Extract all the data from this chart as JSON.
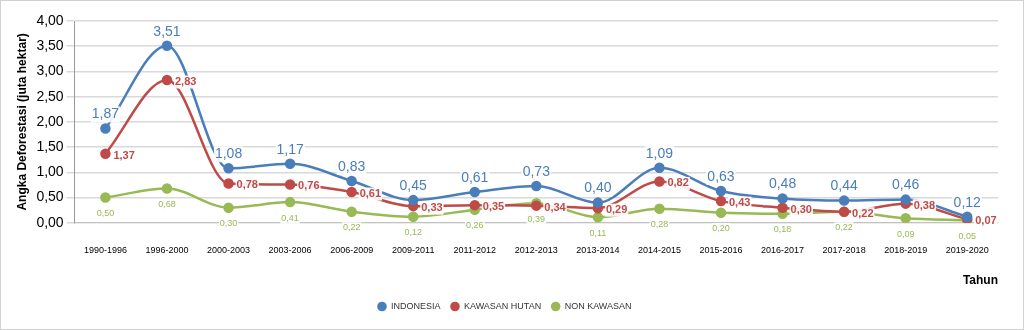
{
  "chart_data": {
    "type": "line",
    "ylabel": "Angka Deforestasi (juta hektar)",
    "xlabel": "Tahun",
    "categories": [
      "1990-1996",
      "1996-2000",
      "2000-2003",
      "2003-2006",
      "2006-2009",
      "2009-2011",
      "2011-2012",
      "2012-2013",
      "2013-2014",
      "2014-2015",
      "2015-2016",
      "2016-2017",
      "2017-2018",
      "2018-2019",
      "2019-2020"
    ],
    "series": [
      {
        "name": "INDONESIA",
        "color": "#4a7ebb",
        "values": [
          1.87,
          3.51,
          1.08,
          1.17,
          0.83,
          0.45,
          0.61,
          0.73,
          0.4,
          1.09,
          0.63,
          0.48,
          0.44,
          0.46,
          0.12
        ],
        "value_labels": [
          "1,87",
          "3,51",
          "1,08",
          "1,17",
          "0,83",
          "0,45",
          "0,61",
          "0,73",
          "0,40",
          "1,09",
          "0,63",
          "0,48",
          "0,44",
          "0,46",
          "0,12"
        ]
      },
      {
        "name": "KAWASAN HUTAN",
        "color": "#be4b48",
        "values": [
          1.37,
          2.83,
          0.78,
          0.76,
          0.61,
          0.33,
          0.35,
          0.34,
          0.29,
          0.82,
          0.43,
          0.3,
          0.22,
          0.38,
          0.07
        ],
        "value_labels": [
          "1,37",
          "2,83",
          "0,78",
          "0,76",
          "0,61",
          "0,33",
          "0,35",
          "0,34",
          "0,29",
          "0,82",
          "0,43",
          "0,30",
          "0,22",
          "0,38",
          "0,07"
        ]
      },
      {
        "name": "NON KAWASAN",
        "color": "#98b954",
        "values": [
          0.5,
          0.68,
          0.3,
          0.41,
          0.22,
          0.12,
          0.26,
          0.39,
          0.11,
          0.28,
          0.2,
          0.18,
          0.22,
          0.09,
          0.05
        ],
        "value_labels": [
          "0,50",
          "0,68",
          "0,30",
          "0,41",
          "0,22",
          "0,12",
          "0,26",
          "0,39",
          "0,11",
          "0,28",
          "0,20",
          "0,18",
          "0,22",
          "0,09",
          "0,05"
        ]
      }
    ],
    "ylim": [
      0,
      4
    ],
    "yticks": [
      {
        "value": 0,
        "label": "0,00"
      },
      {
        "value": 0.5,
        "label": "0,50"
      },
      {
        "value": 1,
        "label": "1,00"
      },
      {
        "value": 1.5,
        "label": "1,50"
      },
      {
        "value": 2,
        "label": "2,00"
      },
      {
        "value": 2.5,
        "label": "2,50"
      },
      {
        "value": 3,
        "label": "3,00"
      },
      {
        "value": 3.5,
        "label": "3,50"
      },
      {
        "value": 4,
        "label": "4,00"
      }
    ],
    "grid": "y",
    "legend": "bottom",
    "marker": "circle",
    "line_style": "solid"
  }
}
